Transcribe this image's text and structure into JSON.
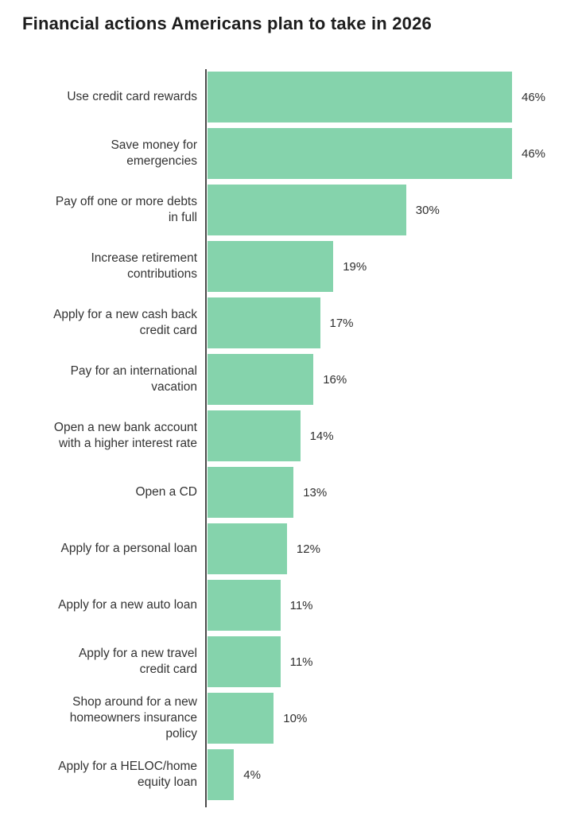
{
  "page": {
    "background": "#ffffff"
  },
  "chart_data": {
    "type": "bar",
    "orientation": "horizontal",
    "title": "Financial actions Americans plan to take in 2026",
    "categories": [
      "Use credit card rewards",
      "Save money for\nemergencies",
      "Pay off one or more debts\nin full",
      "Increase retirement\ncontributions",
      "Apply for a new cash back\ncredit card",
      "Pay for an international\nvacation",
      "Open a new bank account\nwith a higher interest rate",
      "Open a CD",
      "Apply for a personal loan",
      "Apply for a new auto loan",
      "Apply for a new travel\ncredit card",
      "Shop around for a new\nhomeowners insurance\npolicy",
      "Apply for a HELOC/home\nequity loan"
    ],
    "values": [
      46,
      46,
      30,
      19,
      17,
      16,
      14,
      13,
      12,
      11,
      11,
      10,
      4
    ],
    "value_labels": [
      "46%",
      "46%",
      "30%",
      "19%",
      "17%",
      "16%",
      "14%",
      "13%",
      "12%",
      "11%",
      "11%",
      "10%",
      "4%"
    ],
    "xlabel": "",
    "ylabel": "",
    "xlim": [
      0,
      46
    ],
    "grid": false,
    "legend": false,
    "bar_color": "#85d3ac",
    "axis_color": "#4a4a4a",
    "label_color": "#333333",
    "title_color": "#1d1d1d"
  }
}
